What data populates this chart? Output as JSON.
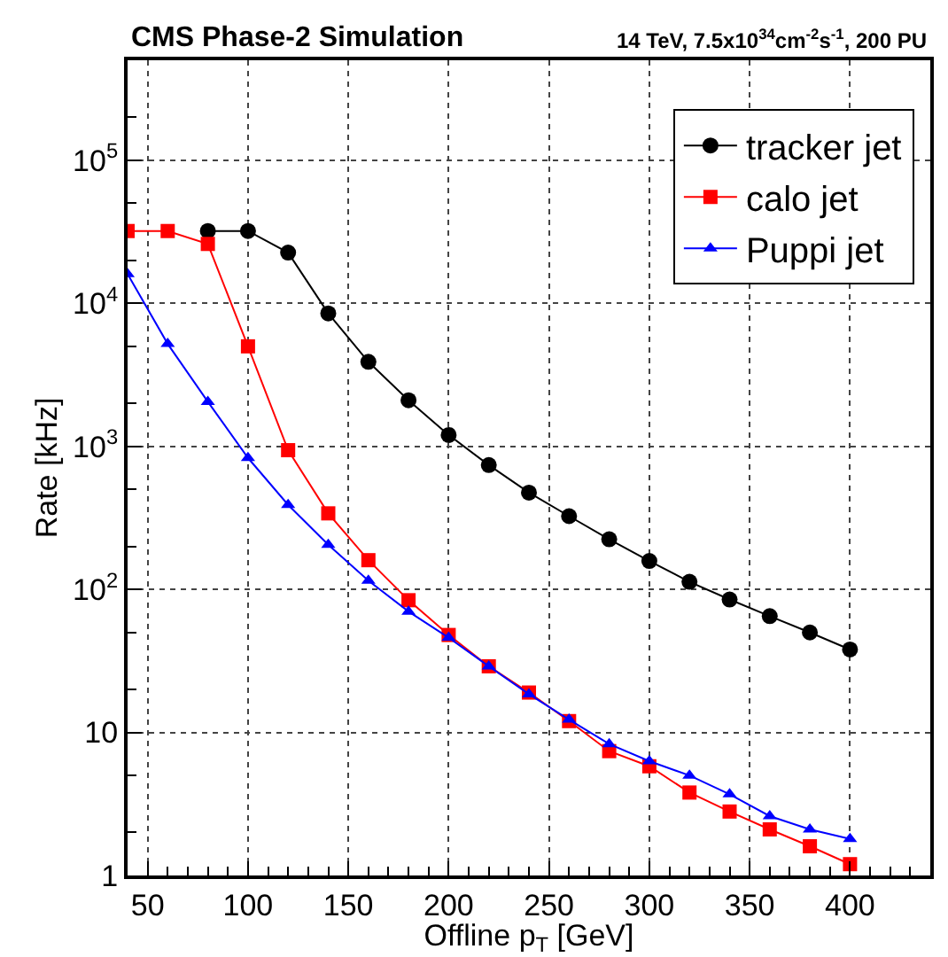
{
  "chart_data": {
    "type": "line",
    "title": "CMS Phase-2 Simulation",
    "subtitle": "14 TeV, 7.5x10$^{34}$cm$^{-2}$s$^{-1}$, 200 PU",
    "xlabel": "Offline p$_{T}$ [GeV]",
    "ylabel": "Rate [kHz]",
    "x": [
      40,
      60,
      80,
      100,
      120,
      140,
      160,
      180,
      200,
      220,
      240,
      260,
      280,
      300,
      320,
      340,
      360,
      380,
      400
    ],
    "series": [
      {
        "name": "tracker jet",
        "color": "#000000",
        "marker": "circle",
        "x": [
          80,
          100,
          120,
          140,
          160,
          180,
          200,
          220,
          240,
          260,
          280,
          300,
          320,
          340,
          360,
          380,
          400
        ],
        "values": [
          32000,
          32000,
          22600,
          8500,
          3900,
          2100,
          1200,
          740,
          475,
          325,
          224,
          158,
          113,
          85,
          65,
          50,
          38
        ]
      },
      {
        "name": "calo jet",
        "color": "#ff0000",
        "marker": "square",
        "values": [
          32000,
          32000,
          26000,
          5000,
          940,
          340,
          160,
          84,
          48,
          29,
          19,
          12,
          7.4,
          5.8,
          3.8,
          2.8,
          2.1,
          1.6,
          1.2
        ]
      },
      {
        "name": "Puppi jet",
        "color": "#0000ff",
        "marker": "triangle",
        "values": [
          16000,
          5200,
          2050,
          830,
          390,
          205,
          115,
          70,
          46,
          29,
          18.5,
          12.3,
          8.3,
          6.3,
          5.0,
          3.7,
          2.6,
          2.1,
          1.8
        ]
      }
    ],
    "log": "y",
    "xlim": [
      40,
      440
    ],
    "xticks": [
      50,
      100,
      150,
      200,
      250,
      300,
      350,
      400
    ],
    "ylim": [
      1,
      500000
    ],
    "yticks": [
      {
        "value": 1,
        "label": "1"
      },
      {
        "value": 10,
        "label": "10"
      },
      {
        "value": 100,
        "label": "10$^{2}$"
      },
      {
        "value": 1000,
        "label": "10$^{3}$"
      },
      {
        "value": 10000,
        "label": "10$^{4}$"
      },
      {
        "value": 100000,
        "label": "10$^{5}$"
      }
    ],
    "grid": true,
    "legend": "top right",
    "line_style": "solid"
  }
}
